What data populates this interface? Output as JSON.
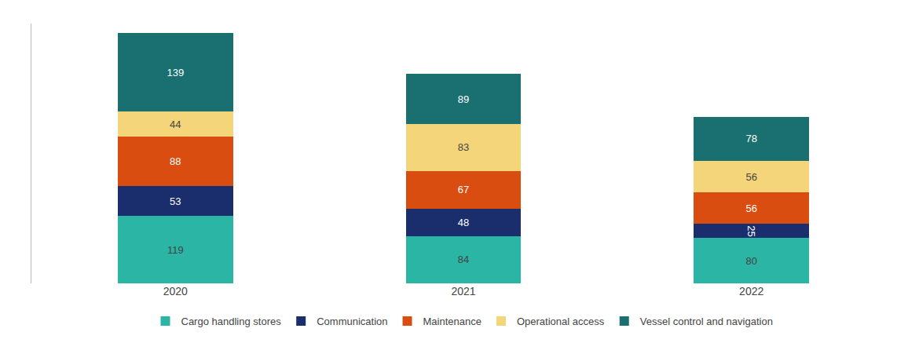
{
  "chart_data": {
    "type": "bar",
    "stacked": true,
    "data_labels": true,
    "grid": false,
    "legend": "bottom",
    "tick_labels": "x",
    "categories": [
      "2020",
      "2021",
      "2022"
    ],
    "ylim": [
      0,
      460
    ],
    "series": [
      {
        "name": "Cargo handling stores",
        "color": "#2ab5a5",
        "values": [
          119,
          84,
          80
        ]
      },
      {
        "name": "Communication",
        "color": "#1a2e6e",
        "values": [
          53,
          48,
          25
        ]
      },
      {
        "name": "Maintenance",
        "color": "#d94e10",
        "values": [
          88,
          67,
          56
        ]
      },
      {
        "name": "Operational access",
        "color": "#f5d57a",
        "values": [
          44,
          83,
          56
        ]
      },
      {
        "name": "Vessel control and navigation",
        "color": "#1a7070",
        "values": [
          139,
          89,
          78
        ]
      }
    ]
  }
}
